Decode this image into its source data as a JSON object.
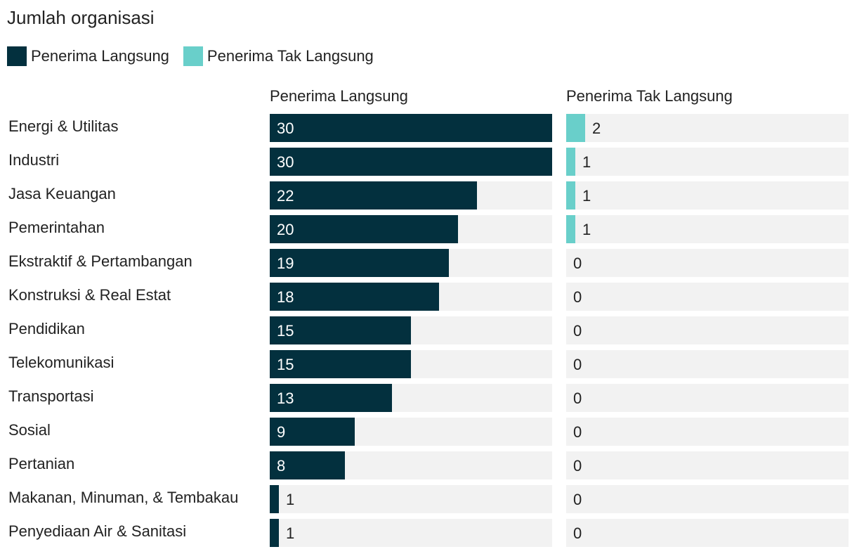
{
  "chart_data": {
    "type": "bar",
    "orientation": "horizontal",
    "title": "Jumlah organisasi",
    "legend": [
      {
        "name": "Penerima Langsung",
        "color": "#03303e"
      },
      {
        "name": "Penerima Tak Langsung",
        "color": "#69cfca"
      }
    ],
    "categories": [
      "Energi & Utilitas",
      "Industri",
      "Jasa Keuangan",
      "Pemerintahan",
      "Ekstraktif & Pertambangan",
      "Konstruksi & Real Estat",
      "Pendidikan",
      "Telekomunikasi",
      "Transportasi",
      "Sosial",
      "Pertanian",
      "Makanan, Minuman, & Tembakau",
      "Penyediaan Air & Sanitasi"
    ],
    "series": [
      {
        "name": "Penerima Langsung",
        "color": "#03303e",
        "values": [
          30,
          30,
          22,
          20,
          19,
          18,
          15,
          15,
          13,
          9,
          8,
          1,
          1
        ],
        "max": 30
      },
      {
        "name": "Penerima Tak Langsung",
        "color": "#69cfca",
        "values": [
          2,
          1,
          1,
          1,
          0,
          0,
          0,
          0,
          0,
          0,
          0,
          0,
          0
        ],
        "max": 30
      }
    ],
    "track_color": "#f2f2f2"
  }
}
